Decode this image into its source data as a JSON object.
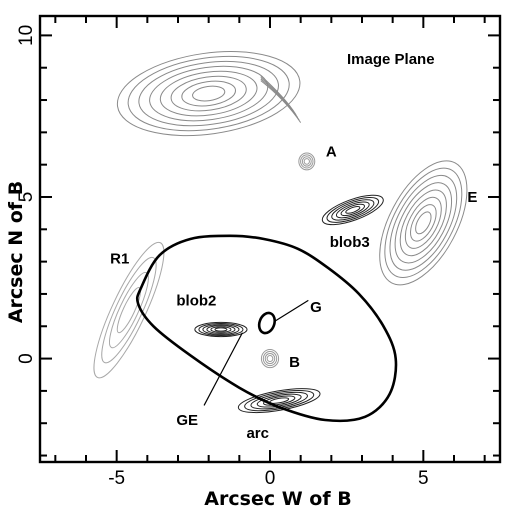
{
  "chart_data": {
    "type": "contour",
    "title": "Image Plane",
    "xlabel": "Arcsec W of B",
    "ylabel": "Arcsec N of B",
    "xlim": [
      -7.5,
      7.5
    ],
    "ylim": [
      -3.2,
      10.6
    ],
    "x_ticks": [
      -5,
      0,
      5
    ],
    "y_ticks": [
      0,
      5,
      10
    ],
    "labels": [
      {
        "text": "A",
        "x": 2.0,
        "y": 6.4
      },
      {
        "text": "E",
        "x": 6.6,
        "y": 5.0
      },
      {
        "text": "blob3",
        "x": 2.6,
        "y": 3.6
      },
      {
        "text": "R1",
        "x": -4.9,
        "y": 3.1
      },
      {
        "text": "blob2",
        "x": -2.4,
        "y": 1.8
      },
      {
        "text": "G",
        "x": 1.5,
        "y": 1.6
      },
      {
        "text": "B",
        "x": 0.8,
        "y": -0.1
      },
      {
        "text": "GE",
        "x": -2.7,
        "y": -1.9
      },
      {
        "text": "arc",
        "x": -0.4,
        "y": -2.3
      }
    ],
    "features": [
      {
        "name": "upper-left-extended-source",
        "x": -2.0,
        "y": 8.2,
        "style": "light"
      },
      {
        "name": "A",
        "x": 1.2,
        "y": 6.1,
        "style": "light"
      },
      {
        "name": "E",
        "x": 5.0,
        "y": 4.2,
        "style": "light"
      },
      {
        "name": "blob3",
        "x": 2.7,
        "y": 4.6,
        "style": "dark"
      },
      {
        "name": "R1",
        "x": -4.6,
        "y": 1.5,
        "style": "light"
      },
      {
        "name": "blob2",
        "x": -1.6,
        "y": 0.9,
        "style": "dark"
      },
      {
        "name": "G",
        "x": -0.1,
        "y": 1.1,
        "style": "dark"
      },
      {
        "name": "B",
        "x": 0.0,
        "y": 0.0,
        "style": "light"
      },
      {
        "name": "arc",
        "x": 0.3,
        "y": -1.3,
        "style": "dark"
      }
    ],
    "critical_curve": [
      [
        -4.2,
        2.2
      ],
      [
        -3.6,
        3.2
      ],
      [
        -2.6,
        3.7
      ],
      [
        -1.3,
        3.8
      ],
      [
        -0.2,
        3.7
      ],
      [
        0.9,
        3.4
      ],
      [
        1.9,
        2.8
      ],
      [
        2.9,
        2.0
      ],
      [
        3.7,
        1.0
      ],
      [
        4.1,
        0.0
      ],
      [
        3.9,
        -1.1
      ],
      [
        3.1,
        -1.8
      ],
      [
        1.8,
        -1.9
      ],
      [
        0.3,
        -1.5
      ],
      [
        -1.0,
        -0.9
      ],
      [
        -2.6,
        0.1
      ],
      [
        -3.8,
        1.0
      ],
      [
        -4.3,
        1.7
      ]
    ]
  }
}
